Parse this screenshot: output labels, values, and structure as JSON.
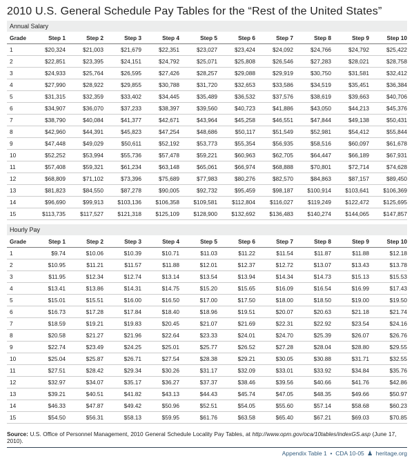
{
  "title": "2010 U.S. General Schedule Pay Tables for the “Rest of the United States”",
  "sections": {
    "annual": "Annual Salary",
    "hourly": "Hourly Pay"
  },
  "headers": [
    "Grade",
    "Step 1",
    "Step 2",
    "Step 3",
    "Step 4",
    "Step 5",
    "Step 6",
    "Step 7",
    "Step 8",
    "Step 9",
    "Step 10"
  ],
  "annual_rows": [
    [
      "1",
      "$20,324",
      "$21,003",
      "$21,679",
      "$22,351",
      "$23,027",
      "$23,424",
      "$24,092",
      "$24,766",
      "$24,792",
      "$25,422"
    ],
    [
      "2",
      "$22,851",
      "$23,395",
      "$24,151",
      "$24,792",
      "$25,071",
      "$25,808",
      "$26,546",
      "$27,283",
      "$28,021",
      "$28,758"
    ],
    [
      "3",
      "$24,933",
      "$25,764",
      "$26,595",
      "$27,426",
      "$28,257",
      "$29,088",
      "$29,919",
      "$30,750",
      "$31,581",
      "$32,412"
    ],
    [
      "4",
      "$27,990",
      "$28,922",
      "$29,855",
      "$30,788",
      "$31,720",
      "$32,653",
      "$33,586",
      "$34,519",
      "$35,451",
      "$36,384"
    ],
    [
      "5",
      "$31,315",
      "$32,359",
      "$33,402",
      "$34,445",
      "$35,489",
      "$36,532",
      "$37,576",
      "$38,619",
      "$39,663",
      "$40,706"
    ],
    [
      "6",
      "$34,907",
      "$36,070",
      "$37,233",
      "$38,397",
      "$39,560",
      "$40,723",
      "$41,886",
      "$43,050",
      "$44,213",
      "$45,376"
    ],
    [
      "7",
      "$38,790",
      "$40,084",
      "$41,377",
      "$42,671",
      "$43,964",
      "$45,258",
      "$46,551",
      "$47,844",
      "$49,138",
      "$50,431"
    ],
    [
      "8",
      "$42,960",
      "$44,391",
      "$45,823",
      "$47,254",
      "$48,686",
      "$50,117",
      "$51,549",
      "$52,981",
      "$54,412",
      "$55,844"
    ],
    [
      "9",
      "$47,448",
      "$49,029",
      "$50,611",
      "$52,192",
      "$53,773",
      "$55,354",
      "$56,935",
      "$58,516",
      "$60,097",
      "$61,678"
    ],
    [
      "10",
      "$52,252",
      "$53,994",
      "$55,736",
      "$57,478",
      "$59,221",
      "$60,963",
      "$62,705",
      "$64,447",
      "$66,189",
      "$67,931"
    ],
    [
      "11",
      "$57,408",
      "$59,321",
      "$61,234",
      "$63,148",
      "$65,061",
      "$66,974",
      "$68,888",
      "$70,801",
      "$72,714",
      "$74,628"
    ],
    [
      "12",
      "$68,809",
      "$71,102",
      "$73,396",
      "$75,689",
      "$77,983",
      "$80,276",
      "$82,570",
      "$84,863",
      "$87,157",
      "$89,450"
    ],
    [
      "13",
      "$81,823",
      "$84,550",
      "$87,278",
      "$90,005",
      "$92,732",
      "$95,459",
      "$98,187",
      "$100,914",
      "$103,641",
      "$106,369"
    ],
    [
      "14",
      "$96,690",
      "$99,913",
      "$103,136",
      "$106,358",
      "$109,581",
      "$112,804",
      "$116,027",
      "$119,249",
      "$122,472",
      "$125,695"
    ],
    [
      "15",
      "$113,735",
      "$117,527",
      "$121,318",
      "$125,109",
      "$128,900",
      "$132,692",
      "$136,483",
      "$140,274",
      "$144,065",
      "$147,857"
    ]
  ],
  "hourly_rows": [
    [
      "1",
      "$9.74",
      "$10.06",
      "$10.39",
      "$10.71",
      "$11.03",
      "$11.22",
      "$11.54",
      "$11.87",
      "$11.88",
      "$12.18"
    ],
    [
      "2",
      "$10.95",
      "$11.21",
      "$11.57",
      "$11.88",
      "$12.01",
      "$12.37",
      "$12.72",
      "$13.07",
      "$13.43",
      "$13.78"
    ],
    [
      "3",
      "$11.95",
      "$12.34",
      "$12.74",
      "$13.14",
      "$13.54",
      "$13.94",
      "$14.34",
      "$14.73",
      "$15.13",
      "$15.53"
    ],
    [
      "4",
      "$13.41",
      "$13.86",
      "$14.31",
      "$14.75",
      "$15.20",
      "$15.65",
      "$16.09",
      "$16.54",
      "$16.99",
      "$17.43"
    ],
    [
      "5",
      "$15.01",
      "$15.51",
      "$16.00",
      "$16.50",
      "$17.00",
      "$17.50",
      "$18.00",
      "$18.50",
      "$19.00",
      "$19.50"
    ],
    [
      "6",
      "$16.73",
      "$17.28",
      "$17.84",
      "$18.40",
      "$18.96",
      "$19.51",
      "$20.07",
      "$20.63",
      "$21.18",
      "$21.74"
    ],
    [
      "7",
      "$18.59",
      "$19.21",
      "$19.83",
      "$20.45",
      "$21.07",
      "$21.69",
      "$22.31",
      "$22.92",
      "$23.54",
      "$24.16"
    ],
    [
      "8",
      "$20.58",
      "$21.27",
      "$21.96",
      "$22.64",
      "$23.33",
      "$24.01",
      "$24.70",
      "$25.39",
      "$26.07",
      "$26.76"
    ],
    [
      "9",
      "$22.74",
      "$23.49",
      "$24.25",
      "$25.01",
      "$25.77",
      "$26.52",
      "$27.28",
      "$28.04",
      "$28.80",
      "$29.55"
    ],
    [
      "10",
      "$25.04",
      "$25.87",
      "$26.71",
      "$27.54",
      "$28.38",
      "$29.21",
      "$30.05",
      "$30.88",
      "$31.71",
      "$32.55"
    ],
    [
      "11",
      "$27.51",
      "$28.42",
      "$29.34",
      "$30.26",
      "$31.17",
      "$32.09",
      "$33.01",
      "$33.92",
      "$34.84",
      "$35.76"
    ],
    [
      "12",
      "$32.97",
      "$34.07",
      "$35.17",
      "$36.27",
      "$37.37",
      "$38.46",
      "$39.56",
      "$40.66",
      "$41.76",
      "$42.86"
    ],
    [
      "13",
      "$39.21",
      "$40.51",
      "$41.82",
      "$43.13",
      "$44.43",
      "$45.74",
      "$47.05",
      "$48.35",
      "$49.66",
      "$50.97"
    ],
    [
      "14",
      "$46.33",
      "$47.87",
      "$49.42",
      "$50.96",
      "$52.51",
      "$54.05",
      "$55.60",
      "$57.14",
      "$58.68",
      "$60.23"
    ],
    [
      "15",
      "$54.50",
      "$56.31",
      "$58.13",
      "$59.95",
      "$61.76",
      "$63.58",
      "$65.40",
      "$67.21",
      "$69.03",
      "$70.85"
    ]
  ],
  "source": {
    "label": "Source:",
    "text1": " U.S. Office of Personnel Management, 2010 General Schedule Locality Pay Tables, at ",
    "url": "http://www.opm.gov/oca/10tables/indexGS.asp",
    "text2": " (June 17, 2010)."
  },
  "footer": {
    "left": "Appendix Table 1",
    "mid": "CDA 10-05",
    "right": "heritage.org"
  }
}
